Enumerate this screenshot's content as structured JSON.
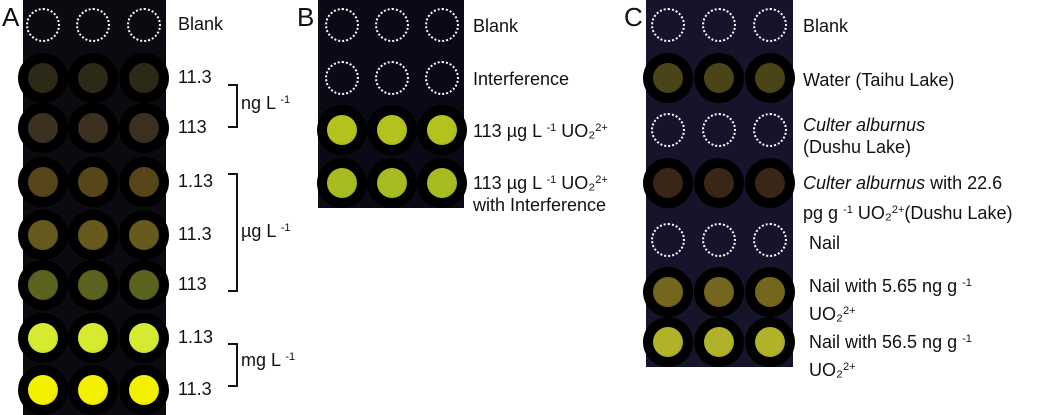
{
  "panels": [
    {
      "letter": "A",
      "plate_bg": "#0b0a10",
      "rows": [
        {
          "blank": true
        },
        {
          "color": "#2c2916"
        },
        {
          "color": "#3c3020"
        },
        {
          "color": "#574619"
        },
        {
          "color": "#665a1c"
        },
        {
          "color": "#5b631f"
        },
        {
          "color": "#d6ea32"
        },
        {
          "color": "#f3f000"
        }
      ],
      "labels": [
        "Blank",
        "11.3",
        "113",
        "1.13",
        "11.3",
        "113",
        "1.13",
        "11.3"
      ],
      "units": [
        {
          "text": "ng L",
          "sup": "-1"
        },
        {
          "text": "µg L",
          "sup": "-1"
        },
        {
          "text": "mg L",
          "sup": "-1"
        }
      ]
    },
    {
      "letter": "B",
      "plate_bg": "#0a0a16",
      "rows": [
        {
          "blank": true
        },
        {
          "blank": true
        },
        {
          "color": "#b4c21e"
        },
        {
          "color": "#a8bc22"
        }
      ],
      "labels": [
        "Blank",
        "Interference"
      ],
      "label3": {
        "a": "113 µg L",
        "sup1": "-1",
        "b": " UO₂",
        "sup2": "2+"
      },
      "label4": {
        "a": "113 µg L",
        "sup1": "-1",
        "b": " UO₂",
        "sup2": "2+",
        "line2": "with Interference"
      }
    },
    {
      "letter": "C",
      "plate_bg": "#16142a",
      "rows": [
        {
          "blank": true
        },
        {
          "color": "#4a4416"
        },
        {
          "blank": true
        },
        {
          "color": "#3a2616"
        },
        {
          "blank": true
        },
        {
          "color": "#75661e"
        },
        {
          "color": "#b0b22a"
        }
      ],
      "labels": {
        "blank": "Blank",
        "water": "Water (Taihu Lake)",
        "culter_italic": "Culter alburnus",
        "culter_loc": "(Dushu Lake)",
        "culter2_italic": "Culter alburnus",
        "culter2_rest": " with 22.6",
        "culter2_l2a": "pg g",
        "culter2_sup1": "-1",
        "culter2_l2b": " UO₂",
        "culter2_sup2": "2+",
        "culter2_l2c": "(Dushu Lake)",
        "nail": "Nail",
        "nail1": "Nail with 5.65 ng g",
        "nail1_sup": "-1",
        "nail1_l2": "UO₂",
        "nail1_l2sup": "2+",
        "nail2": "Nail with 56.5 ng g",
        "nail2_sup": "-1",
        "nail2_l2": "UO₂",
        "nail2_l2sup": "2+"
      }
    }
  ]
}
